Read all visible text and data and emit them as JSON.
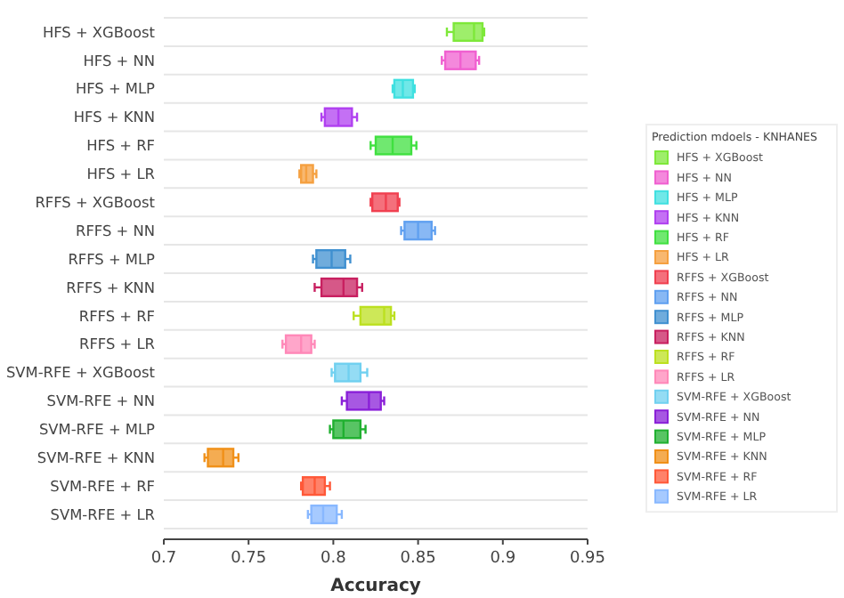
{
  "chart_data": {
    "type": "box",
    "orientation": "horizontal",
    "xlabel": "Accuracy",
    "legend_title": "Prediction mdoels - KNHANES",
    "legend": "right",
    "grid": "y",
    "categories": [
      "HFS + XGBoost",
      "HFS + NN",
      "HFS + MLP",
      "HFS + KNN",
      "HFS + RF",
      "HFS + LR",
      "RFFS + XGBoost",
      "RFFS + NN",
      "RFFS + MLP",
      "RFFS + KNN",
      "RFFS + RF",
      "RFFS + LR",
      "SVM-RFE + XGBoost",
      "SVM-RFE + NN",
      "SVM-RFE + MLP",
      "SVM-RFE + KNN",
      "SVM-RFE + RF",
      "SVM-RFE + LR"
    ],
    "series": [
      {
        "name": "HFS + XGBoost",
        "color": "#7ee83a",
        "boxes": [
          {
            "low": 0.867,
            "q1": 0.871,
            "median": 0.883,
            "q3": 0.888,
            "high": 0.889
          },
          null,
          null,
          null,
          null,
          null,
          null,
          null,
          null,
          null,
          null,
          null,
          null,
          null,
          null,
          null,
          null,
          null
        ]
      },
      {
        "name": "HFS + NN",
        "color": "#f060d0",
        "boxes": [
          null,
          {
            "low": 0.864,
            "q1": 0.866,
            "median": 0.875,
            "q3": 0.884,
            "high": 0.886
          },
          null,
          null,
          null,
          null,
          null,
          null,
          null,
          null,
          null,
          null,
          null,
          null,
          null,
          null,
          null,
          null
        ]
      },
      {
        "name": "HFS + MLP",
        "color": "#40e0e0",
        "boxes": [
          null,
          null,
          {
            "low": 0.835,
            "q1": 0.836,
            "median": 0.841,
            "q3": 0.847,
            "high": 0.848
          },
          null,
          null,
          null,
          null,
          null,
          null,
          null,
          null,
          null,
          null,
          null,
          null,
          null,
          null,
          null
        ]
      },
      {
        "name": "HFS + KNN",
        "color": "#b040f0",
        "boxes": [
          null,
          null,
          null,
          {
            "low": 0.793,
            "q1": 0.795,
            "median": 0.803,
            "q3": 0.811,
            "high": 0.814
          },
          null,
          null,
          null,
          null,
          null,
          null,
          null,
          null,
          null,
          null,
          null,
          null,
          null,
          null
        ]
      },
      {
        "name": "HFS + RF",
        "color": "#40e040",
        "boxes": [
          null,
          null,
          null,
          null,
          {
            "low": 0.822,
            "q1": 0.825,
            "median": 0.835,
            "q3": 0.846,
            "high": 0.849
          },
          null,
          null,
          null,
          null,
          null,
          null,
          null,
          null,
          null,
          null,
          null,
          null,
          null
        ]
      },
      {
        "name": "HFS + LR",
        "color": "#f5a040",
        "boxes": [
          null,
          null,
          null,
          null,
          null,
          {
            "low": 0.78,
            "q1": 0.781,
            "median": 0.784,
            "q3": 0.788,
            "high": 0.79
          },
          null,
          null,
          null,
          null,
          null,
          null,
          null,
          null,
          null,
          null,
          null,
          null
        ]
      },
      {
        "name": "RFFS + XGBoost",
        "color": "#f04050",
        "boxes": [
          null,
          null,
          null,
          null,
          null,
          null,
          {
            "low": 0.822,
            "q1": 0.823,
            "median": 0.831,
            "q3": 0.838,
            "high": 0.839
          },
          null,
          null,
          null,
          null,
          null,
          null,
          null,
          null,
          null,
          null,
          null
        ]
      },
      {
        "name": "RFFS + NN",
        "color": "#60a0f0",
        "boxes": [
          null,
          null,
          null,
          null,
          null,
          null,
          null,
          {
            "low": 0.84,
            "q1": 0.842,
            "median": 0.85,
            "q3": 0.858,
            "high": 0.86
          },
          null,
          null,
          null,
          null,
          null,
          null,
          null,
          null,
          null,
          null
        ]
      },
      {
        "name": "RFFS + MLP",
        "color": "#4090d0",
        "boxes": [
          null,
          null,
          null,
          null,
          null,
          null,
          null,
          null,
          {
            "low": 0.788,
            "q1": 0.79,
            "median": 0.799,
            "q3": 0.807,
            "high": 0.81
          },
          null,
          null,
          null,
          null,
          null,
          null,
          null,
          null,
          null
        ]
      },
      {
        "name": "RFFS + KNN",
        "color": "#c82060",
        "boxes": [
          null,
          null,
          null,
          null,
          null,
          null,
          null,
          null,
          null,
          {
            "low": 0.789,
            "q1": 0.793,
            "median": 0.806,
            "q3": 0.814,
            "high": 0.817
          },
          null,
          null,
          null,
          null,
          null,
          null,
          null,
          null
        ]
      },
      {
        "name": "RFFS + RF",
        "color": "#bce020",
        "boxes": [
          null,
          null,
          null,
          null,
          null,
          null,
          null,
          null,
          null,
          null,
          {
            "low": 0.812,
            "q1": 0.816,
            "median": 0.83,
            "q3": 0.834,
            "high": 0.836
          },
          null,
          null,
          null,
          null,
          null,
          null,
          null
        ]
      },
      {
        "name": "RFFS + LR",
        "color": "#ff88b8",
        "boxes": [
          null,
          null,
          null,
          null,
          null,
          null,
          null,
          null,
          null,
          null,
          null,
          {
            "low": 0.77,
            "q1": 0.772,
            "median": 0.781,
            "q3": 0.787,
            "high": 0.789
          },
          null,
          null,
          null,
          null,
          null,
          null
        ]
      },
      {
        "name": "SVM-RFE + XGBoost",
        "color": "#70d0f0",
        "boxes": [
          null,
          null,
          null,
          null,
          null,
          null,
          null,
          null,
          null,
          null,
          null,
          null,
          {
            "low": 0.799,
            "q1": 0.801,
            "median": 0.809,
            "q3": 0.816,
            "high": 0.82
          },
          null,
          null,
          null,
          null,
          null
        ]
      },
      {
        "name": "SVM-RFE + NN",
        "color": "#8a20d8",
        "boxes": [
          null,
          null,
          null,
          null,
          null,
          null,
          null,
          null,
          null,
          null,
          null,
          null,
          null,
          {
            "low": 0.805,
            "q1": 0.808,
            "median": 0.821,
            "q3": 0.828,
            "high": 0.83
          },
          null,
          null,
          null,
          null
        ]
      },
      {
        "name": "SVM-RFE + MLP",
        "color": "#20b030",
        "boxes": [
          null,
          null,
          null,
          null,
          null,
          null,
          null,
          null,
          null,
          null,
          null,
          null,
          null,
          null,
          {
            "low": 0.798,
            "q1": 0.8,
            "median": 0.806,
            "q3": 0.816,
            "high": 0.819
          },
          null,
          null,
          null
        ]
      },
      {
        "name": "SVM-RFE + KNN",
        "color": "#f09018",
        "boxes": [
          null,
          null,
          null,
          null,
          null,
          null,
          null,
          null,
          null,
          null,
          null,
          null,
          null,
          null,
          null,
          {
            "low": 0.724,
            "q1": 0.726,
            "median": 0.735,
            "q3": 0.741,
            "high": 0.744
          },
          null,
          null
        ]
      },
      {
        "name": "SVM-RFE + RF",
        "color": "#ff5838",
        "boxes": [
          null,
          null,
          null,
          null,
          null,
          null,
          null,
          null,
          null,
          null,
          null,
          null,
          null,
          null,
          null,
          null,
          {
            "low": 0.781,
            "q1": 0.782,
            "median": 0.789,
            "q3": 0.795,
            "high": 0.798
          },
          null
        ]
      },
      {
        "name": "SVM-RFE + LR",
        "color": "#88b8ff",
        "boxes": [
          null,
          null,
          null,
          null,
          null,
          null,
          null,
          null,
          null,
          null,
          null,
          null,
          null,
          null,
          null,
          null,
          null,
          {
            "low": 0.785,
            "q1": 0.787,
            "median": 0.794,
            "q3": 0.802,
            "high": 0.805
          }
        ]
      }
    ],
    "xlim": [
      0.7,
      0.95
    ],
    "xticks": [
      0.7,
      0.75,
      0.8,
      0.85,
      0.9,
      0.95
    ]
  }
}
